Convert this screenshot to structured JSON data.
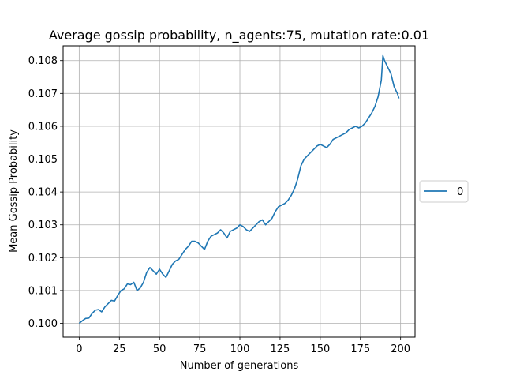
{
  "chart_data": {
    "type": "line",
    "title": "Average gossip probability, n_agents:75, mutation rate:0.01",
    "xlabel": "Number of generations",
    "ylabel": "Mean Gossip Probability",
    "xlim": [
      -10,
      209
    ],
    "ylim": [
      0.09958,
      0.10845
    ],
    "xticks": [
      0,
      25,
      50,
      75,
      100,
      125,
      150,
      175,
      200
    ],
    "yticks": [
      0.1,
      0.101,
      0.102,
      0.103,
      0.104,
      0.105,
      0.106,
      0.107,
      0.108
    ],
    "xtick_labels": [
      "0",
      "25",
      "50",
      "75",
      "100",
      "125",
      "150",
      "175",
      "200"
    ],
    "ytick_labels": [
      "0.100",
      "0.101",
      "0.102",
      "0.103",
      "0.104",
      "0.105",
      "0.106",
      "0.107",
      "0.108"
    ],
    "grid": true,
    "legend_position": "right-outside",
    "series": [
      {
        "name": "0",
        "color": "#1f77b4",
        "points": [
          [
            0,
            0.1
          ],
          [
            2,
            0.10008
          ],
          [
            4,
            0.10015
          ],
          [
            6,
            0.10016
          ],
          [
            8,
            0.1003
          ],
          [
            10,
            0.1004
          ],
          [
            12,
            0.10042
          ],
          [
            14,
            0.10035
          ],
          [
            16,
            0.1005
          ],
          [
            18,
            0.1006
          ],
          [
            20,
            0.1007
          ],
          [
            22,
            0.10068
          ],
          [
            24,
            0.10085
          ],
          [
            26,
            0.101
          ],
          [
            28,
            0.10105
          ],
          [
            30,
            0.1012
          ],
          [
            32,
            0.10118
          ],
          [
            34,
            0.10125
          ],
          [
            36,
            0.101
          ],
          [
            38,
            0.10108
          ],
          [
            40,
            0.10125
          ],
          [
            42,
            0.10155
          ],
          [
            44,
            0.1017
          ],
          [
            46,
            0.1016
          ],
          [
            48,
            0.1015
          ],
          [
            50,
            0.10165
          ],
          [
            52,
            0.1015
          ],
          [
            54,
            0.1014
          ],
          [
            56,
            0.1016
          ],
          [
            58,
            0.1018
          ],
          [
            60,
            0.1019
          ],
          [
            62,
            0.10195
          ],
          [
            64,
            0.1021
          ],
          [
            66,
            0.10225
          ],
          [
            68,
            0.10235
          ],
          [
            70,
            0.1025
          ],
          [
            72,
            0.1025
          ],
          [
            74,
            0.10245
          ],
          [
            76,
            0.10235
          ],
          [
            78,
            0.10225
          ],
          [
            80,
            0.1025
          ],
          [
            82,
            0.10265
          ],
          [
            84,
            0.1027
          ],
          [
            86,
            0.10275
          ],
          [
            88,
            0.10285
          ],
          [
            90,
            0.10275
          ],
          [
            92,
            0.1026
          ],
          [
            94,
            0.1028
          ],
          [
            96,
            0.10285
          ],
          [
            98,
            0.1029
          ],
          [
            100,
            0.103
          ],
          [
            102,
            0.10295
          ],
          [
            104,
            0.10285
          ],
          [
            106,
            0.1028
          ],
          [
            108,
            0.1029
          ],
          [
            110,
            0.103
          ],
          [
            112,
            0.1031
          ],
          [
            114,
            0.10315
          ],
          [
            116,
            0.103
          ],
          [
            118,
            0.1031
          ],
          [
            120,
            0.1032
          ],
          [
            122,
            0.1034
          ],
          [
            124,
            0.10355
          ],
          [
            126,
            0.1036
          ],
          [
            128,
            0.10365
          ],
          [
            130,
            0.10375
          ],
          [
            132,
            0.1039
          ],
          [
            134,
            0.1041
          ],
          [
            136,
            0.1044
          ],
          [
            138,
            0.1048
          ],
          [
            140,
            0.105
          ],
          [
            142,
            0.1051
          ],
          [
            144,
            0.1052
          ],
          [
            146,
            0.1053
          ],
          [
            148,
            0.1054
          ],
          [
            150,
            0.10545
          ],
          [
            152,
            0.1054
          ],
          [
            154,
            0.10535
          ],
          [
            156,
            0.10545
          ],
          [
            158,
            0.1056
          ],
          [
            160,
            0.10565
          ],
          [
            162,
            0.1057
          ],
          [
            164,
            0.10575
          ],
          [
            166,
            0.1058
          ],
          [
            168,
            0.1059
          ],
          [
            170,
            0.10595
          ],
          [
            172,
            0.106
          ],
          [
            174,
            0.10595
          ],
          [
            176,
            0.106
          ],
          [
            178,
            0.1061
          ],
          [
            180,
            0.10625
          ],
          [
            182,
            0.1064
          ],
          [
            184,
            0.1066
          ],
          [
            186,
            0.1069
          ],
          [
            188,
            0.1074
          ],
          [
            189,
            0.10815
          ],
          [
            190,
            0.108
          ],
          [
            192,
            0.1078
          ],
          [
            194,
            0.1076
          ],
          [
            196,
            0.1072
          ],
          [
            198,
            0.107
          ],
          [
            199,
            0.10685
          ]
        ]
      }
    ]
  }
}
